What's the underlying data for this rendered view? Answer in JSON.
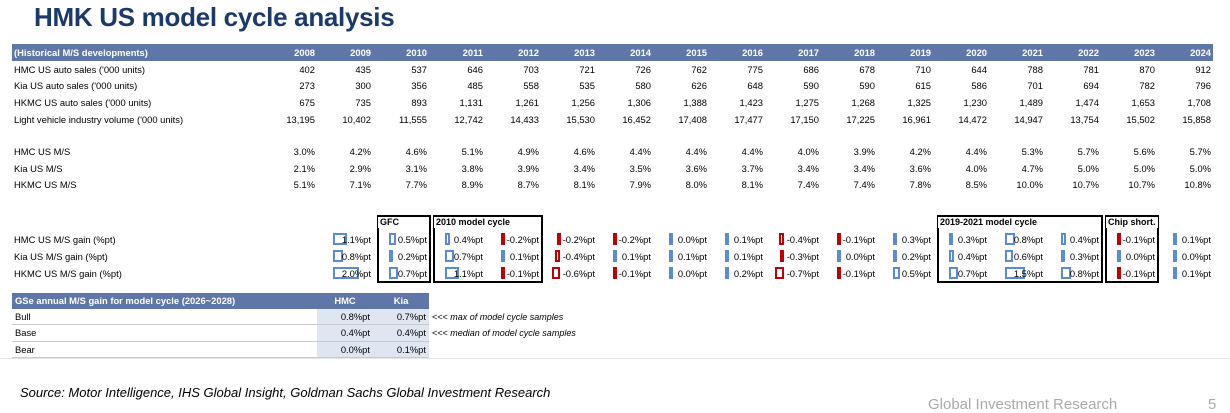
{
  "title": "HMK US model cycle analysis",
  "header": {
    "label": "(Historical M/S developments)",
    "years": [
      "2008",
      "2009",
      "2010",
      "2011",
      "2012",
      "2013",
      "2014",
      "2015",
      "2016",
      "2017",
      "2018",
      "2019",
      "2020",
      "2021",
      "2022",
      "2023",
      "2024"
    ]
  },
  "rows": [
    {
      "label": "HMC US auto sales ('000 units)",
      "values": [
        "402",
        "435",
        "537",
        "646",
        "703",
        "721",
        "726",
        "762",
        "775",
        "686",
        "678",
        "710",
        "644",
        "788",
        "781",
        "870",
        "912"
      ]
    },
    {
      "label": "Kia US auto sales ('000 units)",
      "values": [
        "273",
        "300",
        "356",
        "485",
        "558",
        "535",
        "580",
        "626",
        "648",
        "590",
        "590",
        "615",
        "586",
        "701",
        "694",
        "782",
        "796"
      ]
    },
    {
      "label": "HKMC US auto sales ('000 units)",
      "values": [
        "675",
        "735",
        "893",
        "1,131",
        "1,261",
        "1,256",
        "1,306",
        "1,388",
        "1,423",
        "1,275",
        "1,268",
        "1,325",
        "1,230",
        "1,489",
        "1,474",
        "1,653",
        "1,708"
      ]
    },
    {
      "label": "Light vehicle industry volume ('000 units)",
      "values": [
        "13,195",
        "10,402",
        "11,555",
        "12,742",
        "14,433",
        "15,530",
        "16,452",
        "17,408",
        "17,477",
        "17,150",
        "17,225",
        "16,961",
        "14,472",
        "14,947",
        "13,754",
        "15,502",
        "15,858"
      ]
    }
  ],
  "ms_rows": [
    {
      "label": "HMC US M/S",
      "values": [
        "3.0%",
        "4.2%",
        "4.6%",
        "5.1%",
        "4.9%",
        "4.6%",
        "4.4%",
        "4.4%",
        "4.4%",
        "4.0%",
        "3.9%",
        "4.2%",
        "4.4%",
        "5.3%",
        "5.7%",
        "5.6%",
        "5.7%"
      ]
    },
    {
      "label": "Kia US M/S",
      "values": [
        "2.1%",
        "2.9%",
        "3.1%",
        "3.8%",
        "3.9%",
        "3.4%",
        "3.5%",
        "3.6%",
        "3.7%",
        "3.4%",
        "3.4%",
        "3.6%",
        "4.0%",
        "4.7%",
        "5.0%",
        "5.0%",
        "5.0%"
      ]
    },
    {
      "label": "HKMC US M/S",
      "values": [
        "5.1%",
        "7.1%",
        "7.7%",
        "8.9%",
        "8.7%",
        "8.1%",
        "7.9%",
        "8.0%",
        "8.1%",
        "7.4%",
        "7.4%",
        "7.8%",
        "8.5%",
        "10.0%",
        "10.7%",
        "10.7%",
        "10.8%"
      ]
    }
  ],
  "cycle_labels": {
    "gfc": "GFC",
    "model_2010": "2010 model cycle",
    "model_2019": "2019-2021 model cycle",
    "chip": "Chip short."
  },
  "gain_rows": [
    {
      "label": "HMC US M/S gain (%pt)",
      "values": [
        1.1,
        0.5,
        0.4,
        -0.2,
        -0.2,
        -0.2,
        0.0,
        0.1,
        -0.4,
        -0.1,
        0.3,
        0.3,
        0.8,
        0.4,
        -0.1,
        0.1
      ],
      "text": [
        "1.1%pt",
        "0.5%pt",
        "0.4%pt",
        "-0.2%pt",
        "-0.2%pt",
        "-0.2%pt",
        "0.0%pt",
        "0.1%pt",
        "-0.4%pt",
        "-0.1%pt",
        "0.3%pt",
        "0.3%pt",
        "0.8%pt",
        "0.4%pt",
        "-0.1%pt",
        "0.1%pt"
      ]
    },
    {
      "label": "Kia US M/S gain (%pt)",
      "values": [
        0.8,
        0.2,
        0.7,
        0.1,
        -0.4,
        0.1,
        0.1,
        0.1,
        -0.3,
        0.0,
        0.2,
        0.4,
        0.6,
        0.3,
        0.0,
        0.0
      ],
      "text": [
        "0.8%pt",
        "0.2%pt",
        "0.7%pt",
        "0.1%pt",
        "-0.4%pt",
        "0.1%pt",
        "0.1%pt",
        "0.1%pt",
        "-0.3%pt",
        "0.0%pt",
        "0.2%pt",
        "0.4%pt",
        "0.6%pt",
        "0.3%pt",
        "0.0%pt",
        "0.0%pt"
      ]
    },
    {
      "label": "HKMC US M/S gain (%pt)",
      "values": [
        2.0,
        0.7,
        1.1,
        -0.1,
        -0.6,
        -0.1,
        0.0,
        0.2,
        -0.7,
        -0.1,
        0.5,
        0.7,
        1.5,
        0.8,
        -0.1,
        0.1
      ],
      "text": [
        "2.0%pt",
        "0.7%pt",
        "1.1%pt",
        "-0.1%pt",
        "-0.6%pt",
        "-0.1%pt",
        "0.0%pt",
        "0.2%pt",
        "-0.7%pt",
        "-0.1%pt",
        "0.5%pt",
        "0.7%pt",
        "1.5%pt",
        "0.8%pt",
        "-0.1%pt",
        "0.1%pt"
      ]
    }
  ],
  "gse": {
    "title": "GSe annual M/S gain for model cycle (2026~2028)",
    "col1": "HMC",
    "col2": "Kia",
    "rows": [
      {
        "label": "Bull",
        "hmc": "0.8%pt",
        "kia": "0.7%pt",
        "note": "<<< max of model cycle samples"
      },
      {
        "label": "Base",
        "hmc": "0.4%pt",
        "kia": "0.4%pt",
        "note": "<<< median of model cycle samples"
      },
      {
        "label": "Bear",
        "hmc": "0.0%pt",
        "kia": "0.1%pt",
        "note": ""
      }
    ]
  },
  "source": "Source: Motor Intelligence, IHS Global Insight, Goldman Sachs Global Investment Research",
  "footer": "Global Investment Research",
  "page_number": "5",
  "colors": {
    "header_bg": "#5f76a8",
    "pos_bar": "#5b8bd4",
    "neg_bar": "#c00000",
    "title": "#1b3a6b"
  }
}
